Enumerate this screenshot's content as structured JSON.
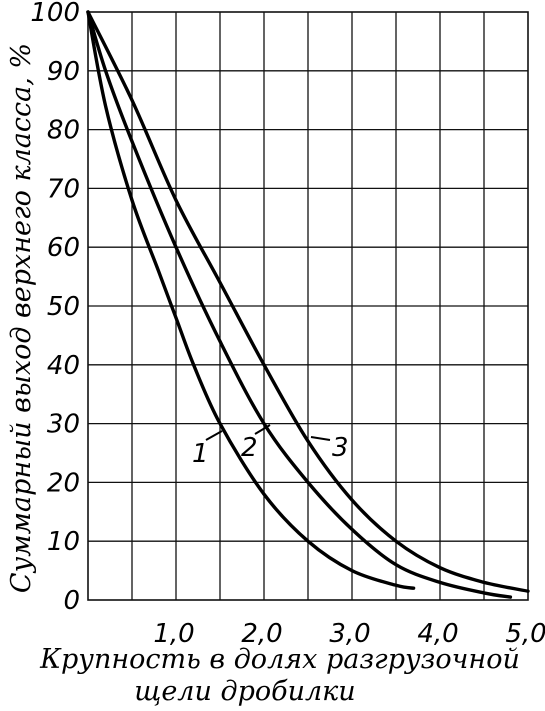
{
  "chart_data": {
    "type": "line",
    "title": "",
    "ylabel": "Суммарный выход верхнего класса, %",
    "xlabel_lines": [
      "Крупность в долях разгрузочной",
      "щели дробилки"
    ],
    "xlim": [
      0,
      5.0
    ],
    "ylim": [
      0,
      100
    ],
    "x_ticks": [
      {
        "value": 1.0,
        "label": "1,0"
      },
      {
        "value": 2.0,
        "label": "2,0"
      },
      {
        "value": 3.0,
        "label": "3,0"
      },
      {
        "value": 4.0,
        "label": "4,0"
      },
      {
        "value": 5.0,
        "label": "5,0"
      }
    ],
    "y_ticks": [
      {
        "value": 0,
        "label": "0"
      },
      {
        "value": 10,
        "label": "10"
      },
      {
        "value": 20,
        "label": "20"
      },
      {
        "value": 30,
        "label": "30"
      },
      {
        "value": 40,
        "label": "40"
      },
      {
        "value": 50,
        "label": "50"
      },
      {
        "value": 60,
        "label": "60"
      },
      {
        "value": 70,
        "label": "70"
      },
      {
        "value": 80,
        "label": "80"
      },
      {
        "value": 90,
        "label": "90"
      },
      {
        "value": 100,
        "label": "100"
      }
    ],
    "grid": true,
    "series": [
      {
        "name": "1",
        "x": [
          0,
          0.2,
          0.5,
          0.8,
          1.0,
          1.2,
          1.5,
          2.0,
          2.5,
          3.0,
          3.5,
          3.7
        ],
        "y": [
          100,
          84,
          68,
          56,
          48,
          40,
          30,
          18,
          10,
          5,
          2.5,
          2
        ]
      },
      {
        "name": "2",
        "x": [
          0,
          0.2,
          0.5,
          1.0,
          1.5,
          2.0,
          2.5,
          3.0,
          3.5,
          4.0,
          4.5,
          4.8
        ],
        "y": [
          100,
          90,
          78,
          60,
          44,
          30,
          20,
          12,
          6,
          3,
          1.2,
          0.5
        ]
      },
      {
        "name": "3",
        "x": [
          0,
          0.5,
          1.0,
          1.5,
          2.0,
          2.5,
          3.0,
          3.5,
          4.0,
          4.5,
          5.0
        ],
        "y": [
          100,
          85,
          68,
          54,
          40,
          27,
          17,
          10,
          5.5,
          3,
          1.5
        ]
      }
    ]
  }
}
